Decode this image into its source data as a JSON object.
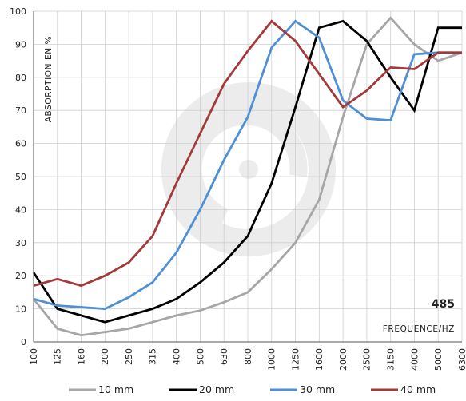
{
  "chart_data": {
    "type": "line",
    "ylabel": "ABSORPTION EN %",
    "xlabel": "FREQUENCE/HZ",
    "annotation": "485",
    "ylim": [
      0,
      100
    ],
    "yticks": [
      0,
      10,
      20,
      30,
      40,
      50,
      60,
      70,
      80,
      90,
      100
    ],
    "grid": true,
    "legend_position": "bottom",
    "categories": [
      "100",
      "125",
      "160",
      "200",
      "250",
      "315",
      "400",
      "500",
      "630",
      "800",
      "1000",
      "1250",
      "1600",
      "2000",
      "2500",
      "3150",
      "4000",
      "5000",
      "6300"
    ],
    "series": [
      {
        "name": "10 mm",
        "color": "#a6a6a6",
        "values": [
          13,
          4,
          2,
          3,
          4,
          6,
          8,
          9.5,
          12,
          15,
          22,
          30,
          43,
          68,
          90,
          98,
          90,
          85,
          87.5
        ]
      },
      {
        "name": "20 mm",
        "color": "#000000",
        "values": [
          21,
          10,
          8,
          6,
          8,
          10,
          13,
          18,
          24,
          32,
          48,
          71,
          95,
          97,
          91,
          80,
          70,
          95,
          95
        ]
      },
      {
        "name": "30 mm",
        "color": "#4f8fd6",
        "values": [
          13,
          11,
          10.5,
          10,
          13.5,
          18,
          27,
          40,
          55,
          68,
          89,
          97,
          92,
          73,
          67.5,
          67,
          87,
          87.5,
          87.5
        ]
      },
      {
        "name": "40 mm",
        "color": "#a33a3a",
        "values": [
          17,
          19,
          17,
          20,
          24,
          32,
          48,
          63,
          78,
          88,
          97,
          91,
          81,
          71,
          76,
          83,
          82.5,
          87.5,
          87.5
        ]
      }
    ]
  }
}
